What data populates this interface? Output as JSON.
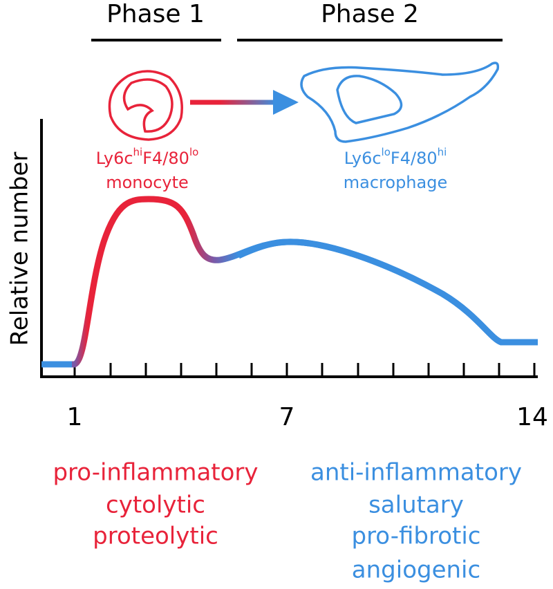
{
  "phases": [
    "Phase 1",
    "Phase 2"
  ],
  "cells": [
    {
      "marker1": "Ly6c",
      "sup1": "hi",
      "marker2": "F4/80",
      "sup2": "lo",
      "name": "monocyte"
    },
    {
      "marker1": "Ly6c",
      "sup1": "lo",
      "marker2": "F4/80",
      "sup2": "hi",
      "name": "macrophage"
    }
  ],
  "axis": {
    "y_label": "Relative number",
    "x_ticks": [
      1,
      7,
      14
    ]
  },
  "properties": {
    "phase1": [
      "pro-inflammatory",
      "cytolytic",
      "proteolytic"
    ],
    "phase2": [
      "anti-inflammatory",
      "salutary",
      "pro-fibrotic",
      "angiogenic"
    ]
  }
}
